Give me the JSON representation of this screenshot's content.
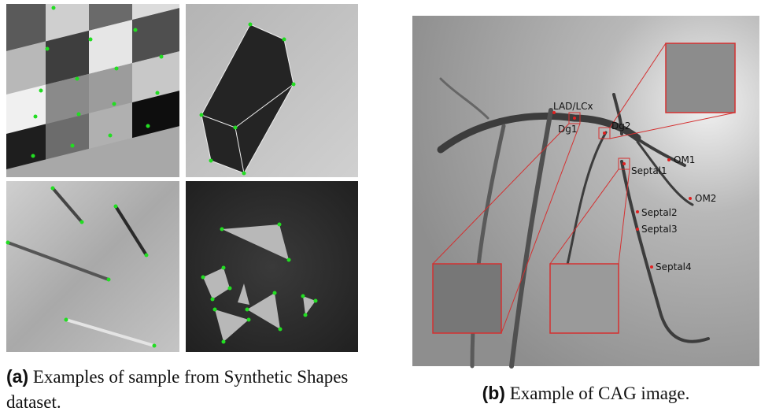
{
  "figure": {
    "panel_a": {
      "label": "(a)",
      "caption": "Examples of sample from Synthetic Shapes dataset."
    },
    "panel_b": {
      "label": "(b)",
      "caption": "Example of CAG image.",
      "landmarks": [
        "LAD/LCx",
        "Dg1",
        "Dg2",
        "OM1",
        "Septal1",
        "OM2",
        "Septal2",
        "Septal3",
        "Septal4"
      ]
    }
  }
}
